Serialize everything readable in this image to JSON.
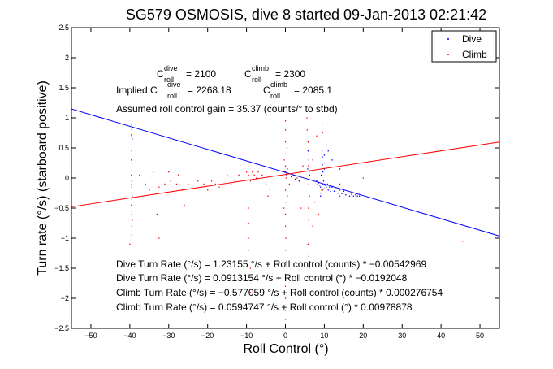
{
  "chart_data": {
    "type": "scatter",
    "title": "SG579 OSMOSIS, dive 8 started 09-Jan-2013 02:21:42",
    "xlabel": "Roll Control (°)",
    "ylabel": "Turn rate (°/s) (starboard positive)",
    "xlim": [
      -55,
      55
    ],
    "ylim": [
      -2.5,
      2.5
    ],
    "xticks": [
      -50,
      -40,
      -30,
      -20,
      -10,
      0,
      10,
      20,
      30,
      40,
      50
    ],
    "yticks": [
      -2.5,
      -2,
      -1.5,
      -1,
      -0.5,
      0,
      0.5,
      1,
      1.5,
      2,
      2.5
    ],
    "xtick_labels": [
      "−50",
      "−40",
      "−30",
      "−20",
      "−10",
      "0",
      "10",
      "20",
      "30",
      "40",
      "50"
    ],
    "ytick_labels": [
      "−2.5",
      "−2",
      "−1.5",
      "−1",
      "−0.5",
      "0",
      "0.5",
      "1",
      "1.5",
      "2",
      "2.5"
    ],
    "grid": false,
    "legend_position": "top-right",
    "series": [
      {
        "name": "Dive",
        "color": "#0000ff",
        "marker": "point",
        "points": [
          [
            -39.5,
            0.88
          ],
          [
            -39.5,
            0.8
          ],
          [
            -39.6,
            0.72
          ],
          [
            -39.4,
            0.65
          ],
          [
            -39.5,
            0.45
          ],
          [
            -39.6,
            0.3
          ],
          [
            -39.5,
            -0.1
          ],
          [
            -39.4,
            -0.3
          ],
          [
            -39.5,
            -0.55
          ],
          [
            0,
            0.1
          ],
          [
            0.3,
            0.05
          ],
          [
            0.5,
            0.15
          ],
          [
            1.5,
            0.02
          ],
          [
            2.5,
            -0.02
          ],
          [
            3.5,
            -0.05
          ],
          [
            5.8,
            0.45
          ],
          [
            5.9,
            0.6
          ],
          [
            6.0,
            0.3
          ],
          [
            5.7,
            0.15
          ],
          [
            6.2,
            0.05
          ],
          [
            8.0,
            -0.05
          ],
          [
            8.3,
            -0.1
          ],
          [
            8.5,
            -0.08
          ],
          [
            8.8,
            -0.12
          ],
          [
            9.0,
            -0.15
          ],
          [
            9.2,
            0.05
          ],
          [
            9.3,
            -0.2
          ],
          [
            9.5,
            -0.1
          ],
          [
            9.6,
            0.1
          ],
          [
            9.8,
            -0.05
          ],
          [
            10.0,
            -0.18
          ],
          [
            10.2,
            -0.12
          ],
          [
            10.5,
            -0.15
          ],
          [
            10.8,
            -0.1
          ],
          [
            11.0,
            -0.2
          ],
          [
            11.3,
            -0.15
          ],
          [
            11.6,
            -0.22
          ],
          [
            12.0,
            -0.15
          ],
          [
            12.5,
            -0.22
          ],
          [
            13.0,
            -0.18
          ],
          [
            13.5,
            -0.25
          ],
          [
            14.0,
            -0.2
          ],
          [
            14.5,
            -0.26
          ],
          [
            15.0,
            -0.22
          ],
          [
            15.5,
            -0.28
          ],
          [
            16.0,
            -0.25
          ],
          [
            16.5,
            -0.3
          ],
          [
            17.0,
            -0.27
          ],
          [
            17.5,
            -0.3
          ],
          [
            18.0,
            -0.28
          ],
          [
            18.5,
            -0.3
          ],
          [
            19.0,
            -0.3
          ],
          [
            9.5,
            0.22
          ],
          [
            9.5,
            0.35
          ],
          [
            9.4,
            0.45
          ],
          [
            9.4,
            -0.4
          ],
          [
            10.5,
            0.55
          ],
          [
            11.0,
            0.45
          ],
          [
            12.0,
            0.3
          ],
          [
            14.0,
            0.15
          ],
          [
            9.0,
            -0.3
          ],
          [
            9.0,
            -0.25
          ],
          [
            10.0,
            0.15
          ],
          [
            10.0,
            0.25
          ],
          [
            10.0,
            0.38
          ]
        ]
      },
      {
        "name": "Climb",
        "color": "#ff0000",
        "marker": "point",
        "points": [
          [
            -39.5,
            0.12
          ],
          [
            -39.6,
            0.05
          ],
          [
            -39.5,
            -0.05
          ],
          [
            -39.5,
            -0.15
          ],
          [
            -39.4,
            -0.25
          ],
          [
            -39.5,
            -0.35
          ],
          [
            -39.6,
            -0.45
          ],
          [
            -39.5,
            -0.6
          ],
          [
            -39.4,
            -0.7
          ],
          [
            -39.5,
            -0.8
          ],
          [
            -39.5,
            -0.95
          ],
          [
            -39.5,
            0.9
          ],
          [
            -39.5,
            0.7
          ],
          [
            -39.5,
            0.55
          ],
          [
            -39.5,
            0.25
          ],
          [
            -37.5,
            0.05
          ],
          [
            -36.0,
            -0.1
          ],
          [
            -35.0,
            -0.2
          ],
          [
            -34.0,
            0.1
          ],
          [
            -32.5,
            -0.15
          ],
          [
            -31.0,
            -0.1
          ],
          [
            -30.0,
            0.1
          ],
          [
            -29.5,
            -0.05
          ],
          [
            -28.0,
            -0.1
          ],
          [
            -27.5,
            0.05
          ],
          [
            -26.5,
            -0.2
          ],
          [
            -25.0,
            -0.1
          ],
          [
            -24.0,
            -0.15
          ],
          [
            -22.5,
            -0.05
          ],
          [
            -21.0,
            -0.1
          ],
          [
            -20.0,
            -0.2
          ],
          [
            -19.0,
            -0.05
          ],
          [
            -18.0,
            -0.1
          ],
          [
            -17.0,
            -0.15
          ],
          [
            -15.0,
            0.05
          ],
          [
            -14.0,
            -0.1
          ],
          [
            -13.0,
            -0.05
          ],
          [
            -12.0,
            0.05
          ],
          [
            -10.0,
            0.1
          ],
          [
            -9.5,
            0.05
          ],
          [
            -9.0,
            -0.05
          ],
          [
            -8.5,
            0.1
          ],
          [
            -8.0,
            0.05
          ],
          [
            -7.5,
            0.0
          ],
          [
            -7.0,
            0.1
          ],
          [
            -6.0,
            0.05
          ],
          [
            -5.0,
            -0.1
          ],
          [
            -4.5,
            -0.3
          ],
          [
            -4.0,
            -0.2
          ],
          [
            -9.5,
            -0.5
          ],
          [
            -9.5,
            -0.75
          ],
          [
            -9.5,
            -1.0
          ],
          [
            -9.5,
            -1.2
          ],
          [
            -9.0,
            -1.5
          ],
          [
            -9.0,
            -1.7
          ],
          [
            -9.0,
            -1.9
          ],
          [
            -33.0,
            -0.6
          ],
          [
            -32.5,
            -1.0
          ],
          [
            -26.0,
            -0.45
          ],
          [
            0.0,
            0.2
          ],
          [
            0.0,
            0.4
          ],
          [
            0.0,
            0.6
          ],
          [
            0.0,
            0.8
          ],
          [
            0.0,
            0.95
          ],
          [
            0.2,
            0.0
          ],
          [
            0.0,
            -0.2
          ],
          [
            0.0,
            -0.4
          ],
          [
            0.0,
            -0.6
          ],
          [
            0.0,
            -0.8
          ],
          [
            0.1,
            -1.0
          ],
          [
            0.0,
            -1.2
          ],
          [
            0.0,
            -1.4
          ],
          [
            0.0,
            -1.6
          ],
          [
            0.0,
            -1.8
          ],
          [
            0.0,
            -2.0
          ],
          [
            0.0,
            -2.2
          ],
          [
            0.0,
            -2.35
          ],
          [
            -0.3,
            0.3
          ],
          [
            0.4,
            0.5
          ],
          [
            -0.4,
            -0.5
          ],
          [
            0.5,
            -0.3
          ],
          [
            -0.2,
            0.1
          ],
          [
            0.3,
            0.08
          ],
          [
            1.0,
            -0.1
          ],
          [
            2.0,
            0.05
          ],
          [
            3.0,
            0.0
          ],
          [
            5.5,
            1.0
          ],
          [
            5.6,
            0.8
          ],
          [
            5.8,
            0.6
          ],
          [
            6.0,
            0.4
          ],
          [
            5.9,
            0.2
          ],
          [
            6.1,
            0.1
          ],
          [
            6.0,
            -0.1
          ],
          [
            6.2,
            -0.3
          ],
          [
            5.9,
            -0.5
          ],
          [
            6.0,
            -0.7
          ],
          [
            6.1,
            -0.9
          ],
          [
            5.8,
            -1.1
          ],
          [
            6.0,
            -1.3
          ],
          [
            6.1,
            -1.5
          ],
          [
            7.0,
            0.3
          ],
          [
            7.5,
            -0.4
          ],
          [
            8.5,
            -0.6
          ],
          [
            8.0,
            0.7
          ],
          [
            7.0,
            -0.8
          ],
          [
            4.5,
            0.2
          ],
          [
            4.0,
            -0.5
          ],
          [
            9.5,
            0.9
          ],
          [
            9.5,
            0.75
          ],
          [
            9.6,
            -0.2
          ],
          [
            14.0,
            -0.1
          ],
          [
            14.0,
            -0.3
          ],
          [
            19.0,
            -0.25
          ],
          [
            20.0,
            0.0
          ],
          [
            45.5,
            -1.05
          ],
          [
            -40.0,
            -1.1
          ]
        ]
      }
    ],
    "fit_lines": [
      {
        "name": "Dive fit",
        "color": "#0000ff",
        "intercept": 0.0913154,
        "slope": -0.0192048
      },
      {
        "name": "Climb fit",
        "color": "#ff0000",
        "intercept": 0.0594747,
        "slope": 0.00978878
      }
    ],
    "legend": [
      {
        "label": "Dive",
        "color": "#0000ff"
      },
      {
        "label": "Climb",
        "color": "#ff0000"
      }
    ],
    "annotations": {
      "c_dive_label": "C",
      "c_dive_sup": "dive",
      "c_dive_sub": "roll",
      "c_dive_value": "= 2100",
      "c_climb_label": "C",
      "c_climb_sup": "climb",
      "c_climb_sub": "roll",
      "c_climb_value": "= 2300",
      "implied_prefix": "Implied C",
      "implied_dive_sup": "dive",
      "implied_dive_sub": "roll",
      "implied_dive_value": "= 2268.18",
      "implied_climb_label": "C",
      "implied_climb_sup": "climb",
      "implied_climb_sub": "roll",
      "implied_climb_value": "= 2085.1",
      "gain": "Assumed roll control gain = 35.37 (counts/° to stbd)",
      "eq1": "Dive Turn Rate (°/s) = 1.23155 °/s + Roll control (counts) * −0.00542969",
      "eq2": "Dive Turn Rate (°/s) = 0.0913154 °/s + Roll control (°) * −0.0192048",
      "eq3": "Climb Turn Rate (°/s) = −0.577059 °/s + Roll control (counts) * 0.000276754",
      "eq4": "Climb Turn Rate (°/s) = 0.0594747 °/s + Roll control (°) * 0.00978878"
    }
  }
}
